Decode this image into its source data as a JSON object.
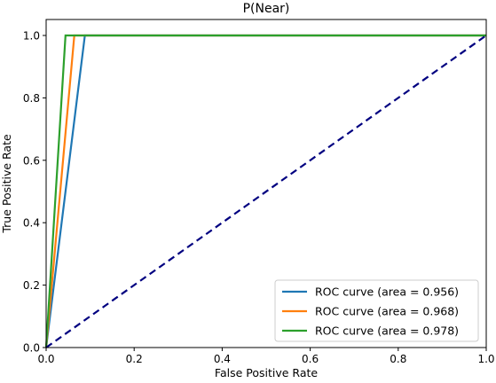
{
  "chart_data": {
    "type": "line",
    "title": "P(Near)",
    "xlabel": "False Positive Rate",
    "ylabel": "True Positive Rate",
    "xlim": [
      0.0,
      1.0
    ],
    "ylim": [
      0.0,
      1.0
    ],
    "xticks": [
      "0.0",
      "0.2",
      "0.4",
      "0.6",
      "0.8",
      "1.0"
    ],
    "yticks": [
      "0.0",
      "0.2",
      "0.4",
      "0.6",
      "0.8",
      "1.0"
    ],
    "grid": false,
    "legend_position": "lower-right",
    "series": [
      {
        "name": "ROC curve (area = 0.956)",
        "color": "#1f77b4",
        "x": [
          0.0,
          0.088,
          1.0
        ],
        "y": [
          0.0,
          1.0,
          1.0
        ]
      },
      {
        "name": "ROC curve (area = 0.968)",
        "color": "#ff7f0e",
        "x": [
          0.0,
          0.064,
          1.0
        ],
        "y": [
          0.0,
          1.0,
          1.0
        ]
      },
      {
        "name": "ROC curve (area = 0.978)",
        "color": "#2ca02c",
        "x": [
          0.0,
          0.044,
          1.0
        ],
        "y": [
          0.0,
          1.0,
          1.0
        ]
      }
    ],
    "reference_line": {
      "color": "#000080",
      "style": "dashed",
      "x": [
        0.0,
        1.0
      ],
      "y": [
        0.0,
        1.0
      ]
    }
  }
}
